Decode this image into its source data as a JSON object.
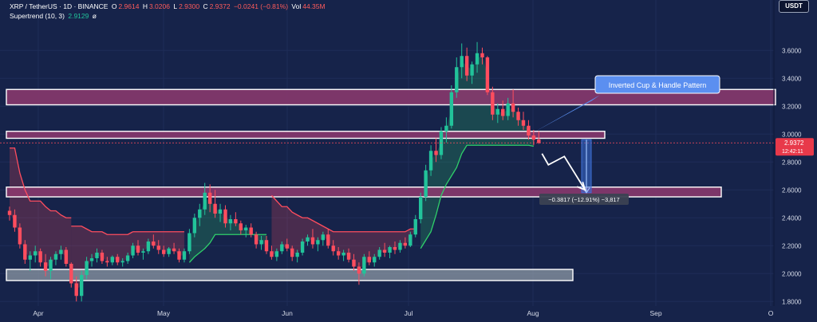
{
  "header": {
    "symbol": "XRP / TetherUS · 1D · BINANCE",
    "o_label": "O",
    "o_value": "2.9614",
    "h_label": "H",
    "h_value": "3.0206",
    "l_label": "L",
    "l_value": "2.9300",
    "c_label": "C",
    "c_value": "2.9372",
    "change": "−0.0241 (−0.81%)",
    "vol_label": "Vol",
    "vol_value": "44.35M",
    "indicator_name": "Supertrend (10, 3)",
    "indicator_value": "2.9129",
    "indicator_extra": "ø"
  },
  "currency_button": "USDT",
  "colors": {
    "background": "#16234a",
    "up_candle": "#22c39a",
    "down_candle": "#ff4d5e",
    "resistance_zone": "#8e3a6e",
    "support_zone": "#8e9aa6",
    "supertrend_up": "#2fcf6a",
    "supertrend_down": "#ff4d5e",
    "pattern_label": "#5b8ff0"
  },
  "chart_data": {
    "type": "candlestick",
    "x_labels": [
      "Apr",
      "May",
      "Jun",
      "Jul",
      "Aug",
      "Sep",
      "O"
    ],
    "y_ticks": [
      "3.6000",
      "3.4000",
      "3.2000",
      "3.0000",
      "2.8000",
      "2.6000",
      "2.4000",
      "2.2000",
      "2.0000",
      "1.8000"
    ],
    "ylim": [
      1.79,
      3.79
    ],
    "last_price": "2.9372",
    "countdown": "12:42:11",
    "zones": [
      {
        "name": "resistance-zone-upper",
        "from": 3.21,
        "to": 3.32,
        "style": "pink"
      },
      {
        "name": "resistance-zone-mid",
        "from": 2.97,
        "to": 3.02,
        "style": "pink"
      },
      {
        "name": "target-zone",
        "from": 2.55,
        "to": 2.62,
        "style": "pink"
      },
      {
        "name": "support-zone",
        "from": 1.95,
        "to": 2.03,
        "style": "grey"
      }
    ],
    "annotation": "Inverted Cup & Handle Pattern",
    "measure": {
      "label": "−0.3817 (−12.91%) −3,817",
      "from": 2.96,
      "to": 2.58
    },
    "candles": [
      {
        "o": 2.45,
        "h": 2.48,
        "l": 2.38,
        "c": 2.42
      },
      {
        "o": 2.42,
        "h": 2.46,
        "l": 2.3,
        "c": 2.33
      },
      {
        "o": 2.33,
        "h": 2.36,
        "l": 2.18,
        "c": 2.21
      },
      {
        "o": 2.21,
        "h": 2.24,
        "l": 2.07,
        "c": 2.1
      },
      {
        "o": 2.1,
        "h": 2.16,
        "l": 2.02,
        "c": 2.13
      },
      {
        "o": 2.13,
        "h": 2.2,
        "l": 2.08,
        "c": 2.16
      },
      {
        "o": 2.16,
        "h": 2.18,
        "l": 2.05,
        "c": 2.08
      },
      {
        "o": 2.08,
        "h": 2.14,
        "l": 1.98,
        "c": 2.02
      },
      {
        "o": 2.02,
        "h": 2.12,
        "l": 1.96,
        "c": 2.1
      },
      {
        "o": 2.1,
        "h": 2.16,
        "l": 2.06,
        "c": 2.14
      },
      {
        "o": 2.14,
        "h": 2.2,
        "l": 2.1,
        "c": 2.17
      },
      {
        "o": 2.17,
        "h": 2.19,
        "l": 2.05,
        "c": 2.07
      },
      {
        "o": 2.07,
        "h": 2.08,
        "l": 1.9,
        "c": 1.93
      },
      {
        "o": 1.93,
        "h": 1.98,
        "l": 1.8,
        "c": 1.84
      },
      {
        "o": 1.84,
        "h": 2.02,
        "l": 1.8,
        "c": 1.99
      },
      {
        "o": 1.99,
        "h": 2.12,
        "l": 1.96,
        "c": 2.09
      },
      {
        "o": 2.09,
        "h": 2.14,
        "l": 2.05,
        "c": 2.11
      },
      {
        "o": 2.11,
        "h": 2.18,
        "l": 2.08,
        "c": 2.15
      },
      {
        "o": 2.15,
        "h": 2.17,
        "l": 2.07,
        "c": 2.09
      },
      {
        "o": 2.09,
        "h": 2.12,
        "l": 2.05,
        "c": 2.08
      },
      {
        "o": 2.08,
        "h": 2.13,
        "l": 2.06,
        "c": 2.12
      },
      {
        "o": 2.12,
        "h": 2.14,
        "l": 2.06,
        "c": 2.08
      },
      {
        "o": 2.08,
        "h": 2.11,
        "l": 2.05,
        "c": 2.09
      },
      {
        "o": 2.09,
        "h": 2.15,
        "l": 2.07,
        "c": 2.13
      },
      {
        "o": 2.13,
        "h": 2.22,
        "l": 2.11,
        "c": 2.2
      },
      {
        "o": 2.2,
        "h": 2.24,
        "l": 2.13,
        "c": 2.15
      },
      {
        "o": 2.15,
        "h": 2.18,
        "l": 2.1,
        "c": 2.16
      },
      {
        "o": 2.16,
        "h": 2.25,
        "l": 2.14,
        "c": 2.23
      },
      {
        "o": 2.23,
        "h": 2.28,
        "l": 2.18,
        "c": 2.2
      },
      {
        "o": 2.2,
        "h": 2.24,
        "l": 2.14,
        "c": 2.17
      },
      {
        "o": 2.17,
        "h": 2.2,
        "l": 2.12,
        "c": 2.14
      },
      {
        "o": 2.14,
        "h": 2.19,
        "l": 2.12,
        "c": 2.18
      },
      {
        "o": 2.18,
        "h": 2.22,
        "l": 2.14,
        "c": 2.16
      },
      {
        "o": 2.16,
        "h": 2.18,
        "l": 2.08,
        "c": 2.1
      },
      {
        "o": 2.1,
        "h": 2.18,
        "l": 2.08,
        "c": 2.16
      },
      {
        "o": 2.16,
        "h": 2.32,
        "l": 2.14,
        "c": 2.29
      },
      {
        "o": 2.29,
        "h": 2.43,
        "l": 2.26,
        "c": 2.4
      },
      {
        "o": 2.4,
        "h": 2.5,
        "l": 2.34,
        "c": 2.46
      },
      {
        "o": 2.46,
        "h": 2.65,
        "l": 2.42,
        "c": 2.58
      },
      {
        "o": 2.58,
        "h": 2.64,
        "l": 2.44,
        "c": 2.5
      },
      {
        "o": 2.5,
        "h": 2.6,
        "l": 2.4,
        "c": 2.43
      },
      {
        "o": 2.43,
        "h": 2.5,
        "l": 2.37,
        "c": 2.46
      },
      {
        "o": 2.46,
        "h": 2.49,
        "l": 2.33,
        "c": 2.36
      },
      {
        "o": 2.36,
        "h": 2.42,
        "l": 2.31,
        "c": 2.39
      },
      {
        "o": 2.39,
        "h": 2.44,
        "l": 2.34,
        "c": 2.36
      },
      {
        "o": 2.36,
        "h": 2.38,
        "l": 2.28,
        "c": 2.31
      },
      {
        "o": 2.31,
        "h": 2.35,
        "l": 2.26,
        "c": 2.33
      },
      {
        "o": 2.33,
        "h": 2.36,
        "l": 2.26,
        "c": 2.28
      },
      {
        "o": 2.28,
        "h": 2.3,
        "l": 2.18,
        "c": 2.21
      },
      {
        "o": 2.21,
        "h": 2.27,
        "l": 2.17,
        "c": 2.24
      },
      {
        "o": 2.24,
        "h": 2.27,
        "l": 2.14,
        "c": 2.16
      },
      {
        "o": 2.16,
        "h": 2.2,
        "l": 2.1,
        "c": 2.12
      },
      {
        "o": 2.12,
        "h": 2.18,
        "l": 2.09,
        "c": 2.16
      },
      {
        "o": 2.16,
        "h": 2.23,
        "l": 2.14,
        "c": 2.21
      },
      {
        "o": 2.21,
        "h": 2.25,
        "l": 2.16,
        "c": 2.18
      },
      {
        "o": 2.18,
        "h": 2.2,
        "l": 2.09,
        "c": 2.12
      },
      {
        "o": 2.12,
        "h": 2.17,
        "l": 2.08,
        "c": 2.15
      },
      {
        "o": 2.15,
        "h": 2.25,
        "l": 2.13,
        "c": 2.23
      },
      {
        "o": 2.23,
        "h": 2.28,
        "l": 2.2,
        "c": 2.26
      },
      {
        "o": 2.26,
        "h": 2.32,
        "l": 2.18,
        "c": 2.21
      },
      {
        "o": 2.21,
        "h": 2.26,
        "l": 2.16,
        "c": 2.24
      },
      {
        "o": 2.24,
        "h": 2.3,
        "l": 2.2,
        "c": 2.28
      },
      {
        "o": 2.28,
        "h": 2.32,
        "l": 2.18,
        "c": 2.2
      },
      {
        "o": 2.2,
        "h": 2.24,
        "l": 2.13,
        "c": 2.16
      },
      {
        "o": 2.16,
        "h": 2.19,
        "l": 2.1,
        "c": 2.13
      },
      {
        "o": 2.13,
        "h": 2.17,
        "l": 2.09,
        "c": 2.15
      },
      {
        "o": 2.15,
        "h": 2.18,
        "l": 2.08,
        "c": 2.1
      },
      {
        "o": 2.1,
        "h": 2.14,
        "l": 2.02,
        "c": 2.05
      },
      {
        "o": 2.05,
        "h": 2.08,
        "l": 1.92,
        "c": 2.0
      },
      {
        "o": 2.0,
        "h": 2.14,
        "l": 1.98,
        "c": 2.12
      },
      {
        "o": 2.12,
        "h": 2.16,
        "l": 2.06,
        "c": 2.08
      },
      {
        "o": 2.08,
        "h": 2.14,
        "l": 2.05,
        "c": 2.12
      },
      {
        "o": 2.12,
        "h": 2.19,
        "l": 2.1,
        "c": 2.17
      },
      {
        "o": 2.17,
        "h": 2.22,
        "l": 2.12,
        "c": 2.15
      },
      {
        "o": 2.15,
        "h": 2.2,
        "l": 2.11,
        "c": 2.19
      },
      {
        "o": 2.19,
        "h": 2.23,
        "l": 2.14,
        "c": 2.17
      },
      {
        "o": 2.17,
        "h": 2.24,
        "l": 2.15,
        "c": 2.22
      },
      {
        "o": 2.22,
        "h": 2.26,
        "l": 2.18,
        "c": 2.2
      },
      {
        "o": 2.2,
        "h": 2.3,
        "l": 2.19,
        "c": 2.28
      },
      {
        "o": 2.28,
        "h": 2.42,
        "l": 2.26,
        "c": 2.39
      },
      {
        "o": 2.39,
        "h": 2.58,
        "l": 2.36,
        "c": 2.55
      },
      {
        "o": 2.55,
        "h": 2.78,
        "l": 2.52,
        "c": 2.74
      },
      {
        "o": 2.74,
        "h": 2.92,
        "l": 2.7,
        "c": 2.88
      },
      {
        "o": 2.88,
        "h": 2.97,
        "l": 2.8,
        "c": 2.85
      },
      {
        "o": 2.85,
        "h": 3.05,
        "l": 2.82,
        "c": 3.02
      },
      {
        "o": 3.02,
        "h": 3.12,
        "l": 2.94,
        "c": 3.06
      },
      {
        "o": 3.06,
        "h": 3.35,
        "l": 3.04,
        "c": 3.3
      },
      {
        "o": 3.3,
        "h": 3.55,
        "l": 3.26,
        "c": 3.48
      },
      {
        "o": 3.48,
        "h": 3.65,
        "l": 3.4,
        "c": 3.56
      },
      {
        "o": 3.56,
        "h": 3.62,
        "l": 3.38,
        "c": 3.42
      },
      {
        "o": 3.42,
        "h": 3.52,
        "l": 3.36,
        "c": 3.5
      },
      {
        "o": 3.5,
        "h": 3.66,
        "l": 3.44,
        "c": 3.58
      },
      {
        "o": 3.58,
        "h": 3.62,
        "l": 3.5,
        "c": 3.55
      },
      {
        "o": 3.55,
        "h": 3.56,
        "l": 3.28,
        "c": 3.3
      },
      {
        "o": 3.3,
        "h": 3.34,
        "l": 3.1,
        "c": 3.14
      },
      {
        "o": 3.14,
        "h": 3.22,
        "l": 3.08,
        "c": 3.18
      },
      {
        "o": 3.18,
        "h": 3.24,
        "l": 3.1,
        "c": 3.13
      },
      {
        "o": 3.13,
        "h": 3.26,
        "l": 3.1,
        "c": 3.22
      },
      {
        "o": 3.22,
        "h": 3.32,
        "l": 3.12,
        "c": 3.16
      },
      {
        "o": 3.16,
        "h": 3.19,
        "l": 3.06,
        "c": 3.1
      },
      {
        "o": 3.1,
        "h": 3.16,
        "l": 3.03,
        "c": 3.06
      },
      {
        "o": 3.06,
        "h": 3.1,
        "l": 2.96,
        "c": 2.99
      },
      {
        "o": 2.99,
        "h": 3.03,
        "l": 2.92,
        "c": 2.96
      },
      {
        "o": 2.9614,
        "h": 3.0206,
        "l": 2.93,
        "c": 2.9372
      }
    ],
    "supertrend": [
      {
        "from": 0,
        "to": 12,
        "dir": "down",
        "values": [
          2.9,
          2.9,
          2.72,
          2.6,
          2.52,
          2.52,
          2.52,
          2.48,
          2.45,
          2.45,
          2.42,
          2.4,
          2.4
        ]
      },
      {
        "from": 12,
        "to": 24,
        "dir": "down",
        "values": [
          2.34,
          2.34,
          2.34,
          2.32,
          2.3,
          2.3,
          2.3,
          2.28,
          2.28,
          2.28,
          2.28,
          2.28,
          2.3
        ]
      },
      {
        "from": 24,
        "to": 34,
        "dir": "down",
        "values": [
          2.3,
          2.3,
          2.3,
          2.3,
          2.3,
          2.3,
          2.3,
          2.3,
          2.3,
          2.3,
          2.3
        ]
      },
      {
        "from": 35,
        "to": 50,
        "dir": "up",
        "values": [
          2.08,
          2.12,
          2.15,
          2.18,
          2.22,
          2.28,
          2.28,
          2.28,
          2.28,
          2.28,
          2.28,
          2.28,
          2.28,
          2.28,
          2.28,
          2.28
        ]
      },
      {
        "from": 51,
        "to": 79,
        "dir": "down",
        "values": [
          2.56,
          2.52,
          2.48,
          2.48,
          2.44,
          2.42,
          2.4,
          2.4,
          2.38,
          2.36,
          2.34,
          2.32,
          2.3,
          2.3,
          2.3,
          2.3,
          2.3,
          2.3,
          2.3,
          2.3,
          2.3,
          2.3,
          2.3,
          2.3,
          2.3,
          2.3,
          2.3,
          2.32,
          2.32
        ]
      },
      {
        "from": 80,
        "to": 102,
        "dir": "up",
        "values": [
          2.18,
          2.24,
          2.3,
          2.42,
          2.56,
          2.64,
          2.7,
          2.76,
          2.86,
          2.92,
          2.92,
          2.92,
          2.92,
          2.92,
          2.92,
          2.92,
          2.92,
          2.92,
          2.92,
          2.92,
          2.92,
          2.92,
          2.9129
        ]
      }
    ]
  }
}
